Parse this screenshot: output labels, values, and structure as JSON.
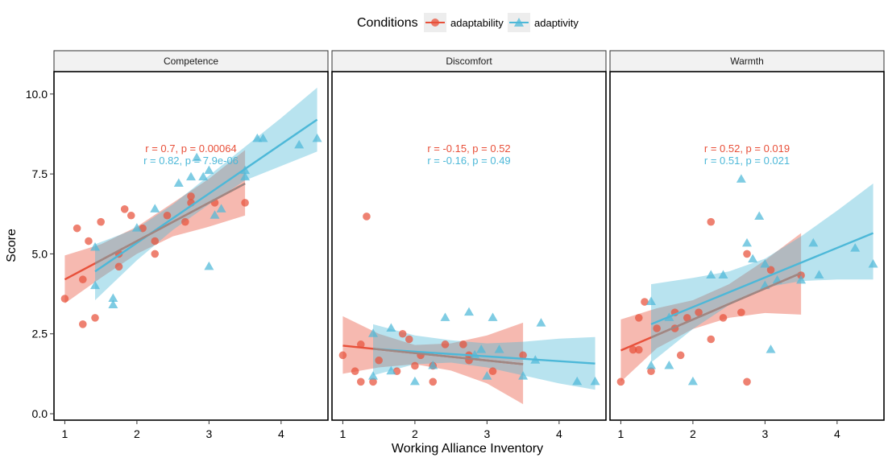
{
  "legend": {
    "title": "Conditions",
    "entries": [
      {
        "label": "adaptability",
        "color": "#E8503A"
      },
      {
        "label": "adaptivity",
        "color": "#4DB8D8"
      }
    ]
  },
  "chart_data": {
    "type": "scatter",
    "xlabel": "Working Alliance Inventory",
    "ylabel": "Score",
    "x_ticks": [
      1,
      2,
      3,
      4
    ],
    "y_ticks": [
      0.0,
      2.5,
      5.0,
      7.5,
      10.0
    ],
    "y_tick_labels": [
      "0.0",
      "2.5",
      "5.0",
      "7.5",
      "10.0"
    ],
    "xlim": [
      0.85,
      4.65
    ],
    "ylim": [
      -0.2,
      10.7
    ],
    "colors": {
      "adaptability": "#E8503A",
      "adaptivity": "#4DB8D8",
      "overlap": "#9E8884"
    },
    "markers": {
      "adaptability": "circle",
      "adaptivity": "triangle"
    },
    "panels": [
      {
        "title": "Competence",
        "annotations": [
          {
            "text": "r = 0.7, p = 0.00064",
            "series": "adaptability"
          },
          {
            "text": "r = 0.82, p = 7.9e-06",
            "series": "adaptivity"
          }
        ],
        "series": [
          {
            "name": "adaptability",
            "points": [
              [
                1.0,
                3.6
              ],
              [
                1.17,
                5.8
              ],
              [
                1.25,
                2.8
              ],
              [
                1.25,
                4.2
              ],
              [
                1.33,
                5.4
              ],
              [
                1.42,
                3.0
              ],
              [
                1.5,
                6.0
              ],
              [
                1.75,
                4.6
              ],
              [
                1.75,
                5.0
              ],
              [
                1.83,
                6.4
              ],
              [
                1.92,
                6.2
              ],
              [
                2.08,
                5.8
              ],
              [
                2.25,
                5.0
              ],
              [
                2.25,
                5.4
              ],
              [
                2.42,
                6.2
              ],
              [
                2.67,
                6.0
              ],
              [
                2.75,
                6.6
              ],
              [
                2.75,
                6.8
              ],
              [
                3.08,
                6.6
              ],
              [
                3.5,
                6.6
              ]
            ],
            "fit": {
              "x0": 1.0,
              "y0": 4.2,
              "x1": 3.5,
              "y1": 7.2
            },
            "band": {
              "x": [
                1.0,
                1.5,
                2.0,
                2.5,
                3.0,
                3.5
              ],
              "lo": [
                3.45,
                4.25,
                5.0,
                5.55,
                5.85,
                6.2
              ],
              "hi": [
                4.95,
                5.3,
                5.85,
                6.6,
                7.35,
                8.25
              ]
            }
          },
          {
            "name": "adaptivity",
            "points": [
              [
                1.42,
                4.0
              ],
              [
                1.42,
                5.2
              ],
              [
                1.67,
                3.4
              ],
              [
                1.67,
                3.6
              ],
              [
                2.0,
                5.8
              ],
              [
                2.25,
                6.4
              ],
              [
                2.58,
                7.2
              ],
              [
                2.75,
                7.4
              ],
              [
                2.83,
                8.0
              ],
              [
                2.92,
                7.4
              ],
              [
                3.0,
                7.6
              ],
              [
                3.0,
                4.6
              ],
              [
                3.08,
                6.2
              ],
              [
                3.17,
                6.4
              ],
              [
                3.5,
                7.4
              ],
              [
                3.5,
                7.6
              ],
              [
                3.67,
                8.6
              ],
              [
                3.75,
                8.6
              ],
              [
                4.25,
                8.4
              ],
              [
                4.5,
                8.6
              ]
            ],
            "fit": {
              "x0": 1.42,
              "y0": 4.45,
              "x1": 4.5,
              "y1": 9.2
            },
            "band": {
              "x": [
                1.42,
                2.0,
                2.5,
                3.0,
                3.5,
                4.0,
                4.5
              ],
              "lo": [
                3.55,
                4.8,
                5.75,
                6.55,
                7.3,
                7.75,
                8.2
              ],
              "hi": [
                5.3,
                5.8,
                6.55,
                7.45,
                8.35,
                9.25,
                10.2
              ]
            }
          }
        ]
      },
      {
        "title": "Discomfort",
        "annotations": [
          {
            "text": "r = -0.15, p = 0.52",
            "series": "adaptability"
          },
          {
            "text": "r = -0.16, p = 0.49",
            "series": "adaptivity"
          }
        ],
        "series": [
          {
            "name": "adaptability",
            "points": [
              [
                1.0,
                1.83
              ],
              [
                1.17,
                1.33
              ],
              [
                1.25,
                1.0
              ],
              [
                1.25,
                2.17
              ],
              [
                1.33,
                6.17
              ],
              [
                1.42,
                1.0
              ],
              [
                1.5,
                1.67
              ],
              [
                1.75,
                1.33
              ],
              [
                1.83,
                2.5
              ],
              [
                1.92,
                2.33
              ],
              [
                2.0,
                1.5
              ],
              [
                2.08,
                1.83
              ],
              [
                2.25,
                1.0
              ],
              [
                2.25,
                1.5
              ],
              [
                2.42,
                2.17
              ],
              [
                2.67,
                2.17
              ],
              [
                2.75,
                1.67
              ],
              [
                2.75,
                1.83
              ],
              [
                3.08,
                1.33
              ],
              [
                3.5,
                1.83
              ]
            ],
            "fit": {
              "x0": 1.0,
              "y0": 2.13,
              "x1": 3.5,
              "y1": 1.55
            },
            "band": {
              "x": [
                1.0,
                1.5,
                2.0,
                2.5,
                3.0,
                3.5
              ],
              "lo": [
                1.25,
                1.45,
                1.55,
                1.35,
                0.95,
                0.3
              ],
              "hi": [
                3.05,
                2.5,
                2.15,
                2.2,
                2.45,
                2.85
              ]
            }
          },
          {
            "name": "adaptivity",
            "points": [
              [
                1.42,
                1.17
              ],
              [
                1.42,
                2.5
              ],
              [
                1.67,
                1.33
              ],
              [
                1.67,
                2.67
              ],
              [
                2.0,
                1.0
              ],
              [
                2.25,
                1.5
              ],
              [
                2.42,
                3.0
              ],
              [
                2.75,
                3.17
              ],
              [
                2.83,
                1.83
              ],
              [
                2.92,
                2.0
              ],
              [
                3.0,
                1.17
              ],
              [
                3.08,
                3.0
              ],
              [
                3.17,
                2.0
              ],
              [
                3.5,
                1.17
              ],
              [
                3.67,
                1.67
              ],
              [
                3.75,
                2.83
              ],
              [
                4.25,
                1.0
              ],
              [
                4.5,
                1.0
              ]
            ],
            "fit": {
              "x0": 1.42,
              "y0": 2.03,
              "x1": 4.5,
              "y1": 1.57
            },
            "band": {
              "x": [
                1.42,
                2.0,
                2.5,
                3.0,
                3.5,
                4.0,
                4.5
              ],
              "lo": [
                1.2,
                1.55,
                1.6,
                1.45,
                1.2,
                0.95,
                0.75
              ],
              "hi": [
                2.8,
                2.45,
                2.3,
                2.2,
                2.25,
                2.35,
                2.4
              ]
            }
          }
        ]
      },
      {
        "title": "Warmth",
        "annotations": [
          {
            "text": "r = 0.52, p = 0.019",
            "series": "adaptability"
          },
          {
            "text": "r = 0.51, p = 0.021",
            "series": "adaptivity"
          }
        ],
        "series": [
          {
            "name": "adaptability",
            "points": [
              [
                1.0,
                1.0
              ],
              [
                1.17,
                2.0
              ],
              [
                1.25,
                2.0
              ],
              [
                1.25,
                3.0
              ],
              [
                1.33,
                3.5
              ],
              [
                1.42,
                1.33
              ],
              [
                1.5,
                2.67
              ],
              [
                1.75,
                2.67
              ],
              [
                1.75,
                3.17
              ],
              [
                1.83,
                1.83
              ],
              [
                1.92,
                3.0
              ],
              [
                2.08,
                3.17
              ],
              [
                2.25,
                2.33
              ],
              [
                2.25,
                6.0
              ],
              [
                2.42,
                3.0
              ],
              [
                2.67,
                3.17
              ],
              [
                2.75,
                1.0
              ],
              [
                2.75,
                5.0
              ],
              [
                3.08,
                4.5
              ],
              [
                3.5,
                4.33
              ]
            ],
            "fit": {
              "x0": 1.0,
              "y0": 1.98,
              "x1": 3.5,
              "y1": 4.4
            },
            "band": {
              "x": [
                1.0,
                1.5,
                2.0,
                2.5,
                3.0,
                3.5
              ],
              "lo": [
                1.0,
                2.05,
                2.65,
                3.0,
                3.15,
                3.1
              ],
              "hi": [
                2.95,
                3.3,
                3.55,
                4.05,
                4.8,
                5.65
              ]
            }
          },
          {
            "name": "adaptivity",
            "points": [
              [
                1.42,
                1.5
              ],
              [
                1.42,
                3.5
              ],
              [
                1.67,
                1.5
              ],
              [
                1.67,
                3.0
              ],
              [
                2.0,
                1.0
              ],
              [
                2.25,
                4.33
              ],
              [
                2.42,
                4.33
              ],
              [
                2.67,
                7.33
              ],
              [
                2.75,
                5.33
              ],
              [
                2.83,
                4.83
              ],
              [
                2.92,
                6.17
              ],
              [
                3.0,
                4.67
              ],
              [
                3.0,
                4.0
              ],
              [
                3.08,
                2.0
              ],
              [
                3.17,
                4.17
              ],
              [
                3.5,
                4.17
              ],
              [
                3.67,
                5.33
              ],
              [
                3.75,
                4.33
              ],
              [
                4.25,
                5.17
              ],
              [
                4.5,
                4.67
              ]
            ],
            "fit": {
              "x0": 1.42,
              "y0": 2.8,
              "x1": 4.5,
              "y1": 5.65
            },
            "band": {
              "x": [
                1.42,
                2.0,
                2.5,
                3.0,
                3.5,
                4.0,
                4.5
              ],
              "lo": [
                1.6,
                2.65,
                3.4,
                3.95,
                4.15,
                4.2,
                4.2
              ],
              "hi": [
                4.05,
                4.25,
                4.45,
                4.85,
                5.55,
                6.35,
                7.2
              ]
            }
          }
        ]
      }
    ]
  }
}
